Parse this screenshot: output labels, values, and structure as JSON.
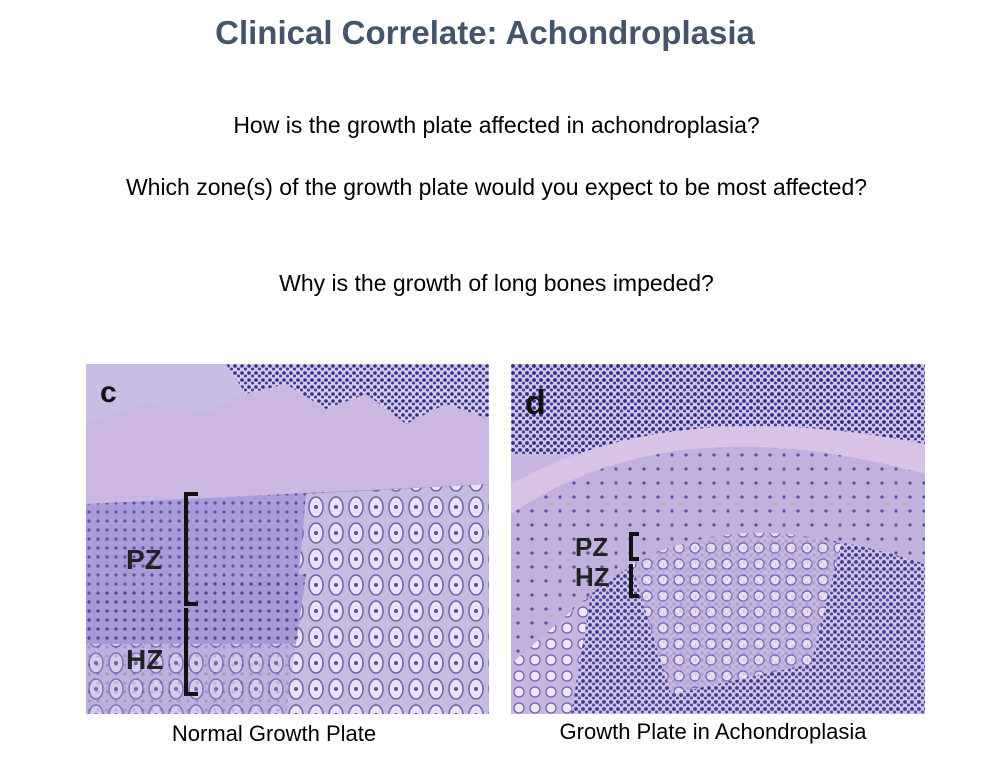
{
  "slide": {
    "title": "Clinical Correlate: Achondroplasia",
    "questions": [
      "How is the growth plate affected in achondroplasia?",
      "Which zone(s) of the growth plate would you expect to be most affected?",
      "Why is the growth of long bones impeded?"
    ]
  },
  "images": {
    "left": {
      "panel_letter": "c",
      "zone_labels": [
        "PZ",
        "HZ"
      ],
      "caption": "Normal Growth Plate"
    },
    "right": {
      "panel_letter": "d",
      "zone_labels": [
        "PZ",
        "HZ"
      ],
      "caption": "Growth Plate in Achondroplasia"
    }
  },
  "colors": {
    "title": "#44546a",
    "tissue_base": "#b6a8dc",
    "nuclei": "#2a2f8a",
    "matrix": "#d7b6df"
  }
}
